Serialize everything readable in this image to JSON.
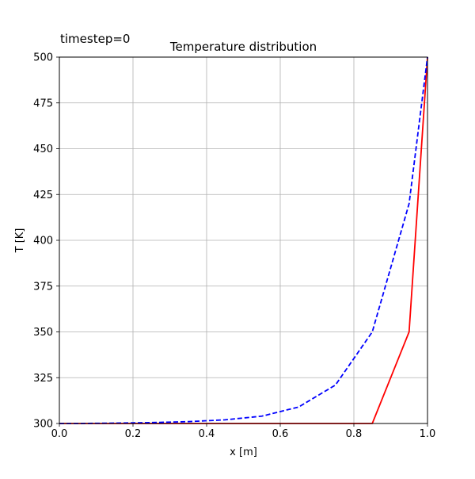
{
  "chart_data": {
    "type": "line",
    "title": "Temperature distribution",
    "annotation": "timestep=0",
    "xlabel": "x [m]",
    "ylabel": "T [K]",
    "xlim": [
      0.0,
      1.0
    ],
    "ylim": [
      300,
      500
    ],
    "xticks": [
      0.0,
      0.2,
      0.4,
      0.6,
      0.8,
      1.0
    ],
    "xtick_labels": [
      "0.0",
      "0.2",
      "0.4",
      "0.6",
      "0.8",
      "1.0"
    ],
    "yticks": [
      300,
      325,
      350,
      375,
      400,
      425,
      450,
      475,
      500
    ],
    "ytick_labels": [
      "300",
      "325",
      "350",
      "375",
      "400",
      "425",
      "450",
      "475",
      "500"
    ],
    "grid": true,
    "series": [
      {
        "style": "solid",
        "color": "#ff0000",
        "x": [
          0.0,
          0.05,
          0.15,
          0.25,
          0.35,
          0.45,
          0.55,
          0.65,
          0.75,
          0.85,
          0.95,
          1.0
        ],
        "y": [
          300,
          300,
          300,
          300,
          300,
          300,
          300,
          300,
          300,
          300,
          350,
          500
        ]
      },
      {
        "style": "dashed",
        "color": "#0000ff",
        "x": [
          0.0,
          0.05,
          0.15,
          0.25,
          0.35,
          0.45,
          0.55,
          0.65,
          0.75,
          0.85,
          0.95,
          1.0
        ],
        "y": [
          300,
          300,
          300.2,
          300.5,
          301,
          302,
          304,
          309,
          321,
          350,
          420,
          500
        ]
      }
    ]
  }
}
